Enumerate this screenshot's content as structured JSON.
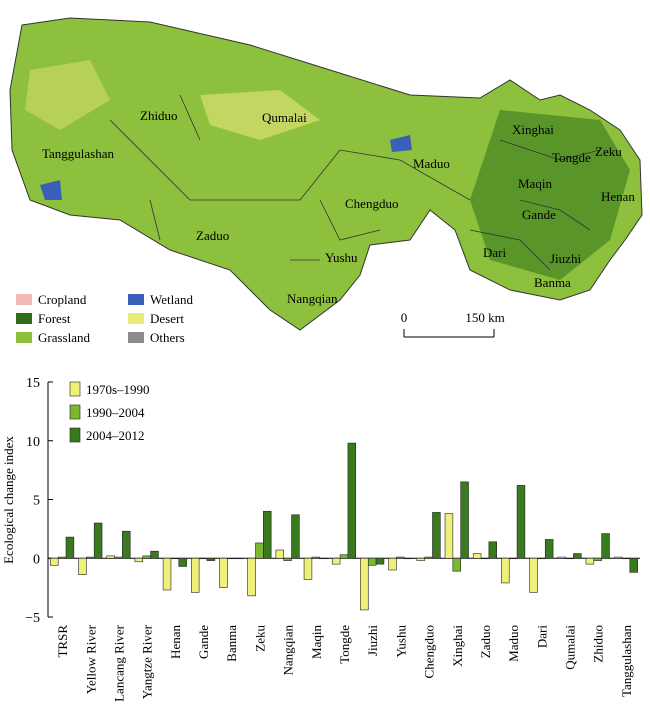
{
  "map": {
    "regions": [
      "Zhiduo",
      "Qumalai",
      "Tanggulashan",
      "Xinghai",
      "Tongde",
      "Zeku",
      "Maduo",
      "Maqin",
      "Henan",
      "Chengduo",
      "Gande",
      "Zaduo",
      "Dari",
      "Jiuzhi",
      "Yushu",
      "Banma",
      "Nangqian"
    ],
    "legend": [
      {
        "name": "Cropland",
        "color": "#f4b8b8"
      },
      {
        "name": "Forest",
        "color": "#2f6b1a"
      },
      {
        "name": "Grassland",
        "color": "#8dc03c"
      },
      {
        "name": "Wetland",
        "color": "#3a5fb8"
      },
      {
        "name": "Desert",
        "color": "#e8ec7a"
      },
      {
        "name": "Others",
        "color": "#8c8c8c"
      }
    ],
    "scale_start": "0",
    "scale_end": "150 km"
  },
  "chart_data": {
    "type": "bar",
    "y_label": "Ecological change index",
    "categories": [
      "TRSR",
      "Yellow River",
      "Lancang River",
      "Yangtze River",
      "Henan",
      "Gande",
      "Banma",
      "Zeku",
      "Nangqian",
      "Maqin",
      "Tongde",
      "Jiuzhi",
      "Yushu",
      "Chengduo",
      "Xinghai",
      "Zaduo",
      "Maduo",
      "Dari",
      "Qumalai",
      "Zhiduo",
      "Tanggulashan"
    ],
    "series": [
      {
        "name": "1970s–1990",
        "color": "#eef07a",
        "values": [
          -0.6,
          -1.4,
          0.2,
          -0.3,
          -2.7,
          -2.9,
          -2.5,
          -3.2,
          0.7,
          -1.8,
          -0.5,
          -4.4,
          -1.0,
          -0.2,
          3.8,
          0.4,
          -2.1,
          -2.9,
          0.1,
          -0.5,
          0.1
        ]
      },
      {
        "name": "1990–2004",
        "color": "#7cb82f",
        "values": [
          0.1,
          0.1,
          0.1,
          0.2,
          0,
          0,
          0,
          1.3,
          -0.2,
          0.1,
          0.3,
          -0.6,
          0.1,
          0.1,
          -1.1,
          0,
          0,
          0,
          0,
          -0.2,
          0
        ]
      },
      {
        "name": "2004–2012",
        "color": "#3a7a1e",
        "values": [
          1.8,
          3.0,
          2.3,
          0.6,
          -0.7,
          -0.2,
          0,
          4.0,
          3.7,
          0,
          9.8,
          -0.5,
          0,
          3.9,
          6.5,
          1.4,
          6.2,
          1.6,
          0.4,
          2.1,
          -1.2
        ]
      }
    ],
    "ylim": [
      -5,
      15
    ],
    "yticks": [
      {
        "value": -5,
        "label": "−5"
      },
      0,
      5,
      10,
      15
    ],
    "legend_position": "upper left"
  }
}
